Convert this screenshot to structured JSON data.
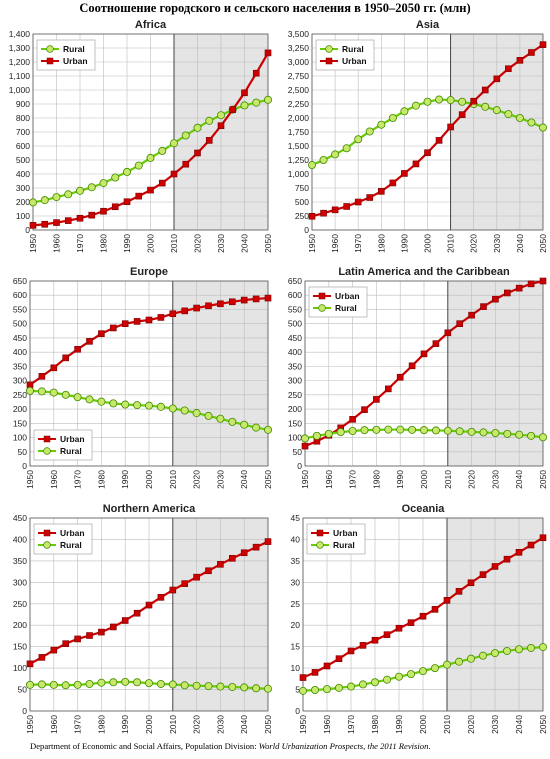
{
  "title": "Соотношение городского и сельского населения в 1950–2050 гг. (млн)",
  "source": {
    "prefix": "Department of Economic and Social Affairs, Population Division: ",
    "italic": "World Urbanization Prospects, the 2011 Revision",
    "suffix": "."
  },
  "colors": {
    "urban": "#cc0000",
    "rural": "#66cc00",
    "projection_shade": "#e4e4e4",
    "grid": "#bdbdbd"
  },
  "chart_data": [
    {
      "type": "line",
      "title": "Africa",
      "x": [
        1950,
        1955,
        1960,
        1965,
        1970,
        1975,
        1980,
        1985,
        1990,
        1995,
        2000,
        2005,
        2010,
        2015,
        2020,
        2025,
        2030,
        2035,
        2040,
        2045,
        2050
      ],
      "xticks": [
        1950,
        1960,
        1970,
        1980,
        1990,
        2000,
        2010,
        2020,
        2030,
        2040,
        2050
      ],
      "ylim": [
        0,
        1400
      ],
      "ystep": 100,
      "projection_from": 2010,
      "legend": "top-left",
      "series": [
        {
          "name": "Rural",
          "key": "rural",
          "values": [
            197,
            213,
            235,
            255,
            280,
            305,
            335,
            375,
            415,
            460,
            515,
            565,
            620,
            675,
            730,
            780,
            820,
            860,
            890,
            910,
            930
          ]
        },
        {
          "name": "Urban",
          "key": "urban",
          "values": [
            33,
            41,
            53,
            67,
            84,
            106,
            134,
            166,
            202,
            242,
            285,
            335,
            400,
            470,
            550,
            640,
            745,
            860,
            980,
            1120,
            1265
          ]
        }
      ]
    },
    {
      "type": "line",
      "title": "Asia",
      "x": [
        1950,
        1955,
        1960,
        1965,
        1970,
        1975,
        1980,
        1985,
        1990,
        1995,
        2000,
        2005,
        2010,
        2015,
        2020,
        2025,
        2030,
        2035,
        2040,
        2045,
        2050
      ],
      "xticks": [
        1950,
        1960,
        1970,
        1980,
        1990,
        2000,
        2010,
        2020,
        2030,
        2040,
        2050
      ],
      "ylim": [
        0,
        3500
      ],
      "ystep": 250,
      "projection_from": 2010,
      "legend": "top-left",
      "series": [
        {
          "name": "Rural",
          "key": "rural",
          "values": [
            1160,
            1250,
            1350,
            1460,
            1620,
            1760,
            1880,
            2000,
            2120,
            2220,
            2290,
            2330,
            2320,
            2290,
            2250,
            2200,
            2140,
            2070,
            2000,
            1920,
            1830
          ]
        },
        {
          "name": "Urban",
          "key": "urban",
          "values": [
            245,
            300,
            360,
            420,
            500,
            580,
            690,
            840,
            1010,
            1180,
            1380,
            1600,
            1840,
            2060,
            2300,
            2500,
            2700,
            2880,
            3030,
            3170,
            3310
          ]
        }
      ]
    },
    {
      "type": "line",
      "title": "Europe",
      "x": [
        1950,
        1955,
        1960,
        1965,
        1970,
        1975,
        1980,
        1985,
        1990,
        1995,
        2000,
        2005,
        2010,
        2015,
        2020,
        2025,
        2030,
        2035,
        2040,
        2045,
        2050
      ],
      "xticks": [
        1950,
        1960,
        1970,
        1980,
        1990,
        2000,
        2010,
        2020,
        2030,
        2040,
        2050
      ],
      "ylim": [
        0,
        650
      ],
      "ystep": 50,
      "projection_from": 2010,
      "legend": "bottom-left",
      "series": [
        {
          "name": "Urban",
          "key": "urban",
          "values": [
            285,
            315,
            345,
            380,
            410,
            438,
            465,
            485,
            500,
            508,
            513,
            522,
            535,
            545,
            555,
            563,
            570,
            577,
            583,
            587,
            590
          ]
        },
        {
          "name": "Rural",
          "key": "rural",
          "values": [
            264,
            262,
            258,
            250,
            242,
            234,
            226,
            220,
            216,
            214,
            212,
            208,
            202,
            195,
            186,
            176,
            166,
            155,
            145,
            135,
            127
          ]
        }
      ]
    },
    {
      "type": "line",
      "title": "Latin America and the Caribbean",
      "x": [
        1950,
        1955,
        1960,
        1965,
        1970,
        1975,
        1980,
        1985,
        1990,
        1995,
        2000,
        2005,
        2010,
        2015,
        2020,
        2025,
        2030,
        2035,
        2040,
        2045,
        2050
      ],
      "xticks": [
        1950,
        1960,
        1970,
        1980,
        1990,
        2000,
        2010,
        2020,
        2030,
        2040,
        2050
      ],
      "ylim": [
        0,
        650
      ],
      "ystep": 50,
      "projection_from": 2010,
      "legend": "top-left",
      "series": [
        {
          "name": "Urban",
          "key": "urban",
          "values": [
            70,
            87,
            108,
            134,
            164,
            198,
            234,
            271,
            312,
            352,
            394,
            430,
            468,
            500,
            530,
            560,
            586,
            608,
            625,
            640,
            650
          ]
        },
        {
          "name": "Rural",
          "key": "rural",
          "values": [
            97,
            106,
            113,
            119,
            123,
            126,
            127,
            128,
            128,
            127,
            126,
            125,
            124,
            122,
            120,
            118,
            116,
            113,
            110,
            106,
            101
          ]
        }
      ]
    },
    {
      "type": "line",
      "title": "Northern America",
      "x": [
        1950,
        1955,
        1960,
        1965,
        1970,
        1975,
        1980,
        1985,
        1990,
        1995,
        2000,
        2005,
        2010,
        2015,
        2020,
        2025,
        2030,
        2035,
        2040,
        2045,
        2050
      ],
      "xticks": [
        1950,
        1960,
        1970,
        1980,
        1990,
        2000,
        2010,
        2020,
        2030,
        2040,
        2050
      ],
      "ylim": [
        0,
        450
      ],
      "ystep": 50,
      "projection_from": 2010,
      "legend": "top-left",
      "series": [
        {
          "name": "Urban",
          "key": "urban",
          "values": [
            110,
            125,
            142,
            157,
            168,
            176,
            184,
            196,
            211,
            228,
            247,
            265,
            282,
            297,
            312,
            327,
            342,
            356,
            369,
            382,
            395
          ]
        },
        {
          "name": "Rural",
          "key": "rural",
          "values": [
            61,
            62,
            61,
            60,
            61,
            63,
            66,
            67,
            68,
            67,
            65,
            63,
            62,
            60,
            59,
            58,
            57,
            56,
            55,
            53,
            52
          ]
        }
      ]
    },
    {
      "type": "line",
      "title": "Oceania",
      "x": [
        1950,
        1955,
        1960,
        1965,
        1970,
        1975,
        1980,
        1985,
        1990,
        1995,
        2000,
        2005,
        2010,
        2015,
        2020,
        2025,
        2030,
        2035,
        2040,
        2045,
        2050
      ],
      "xticks": [
        1950,
        1960,
        1970,
        1980,
        1990,
        2000,
        2010,
        2020,
        2030,
        2040,
        2050
      ],
      "ylim": [
        0,
        45
      ],
      "ystep": 5,
      "projection_from": 2010,
      "legend": "top-left",
      "series": [
        {
          "name": "Urban",
          "key": "urban",
          "values": [
            7.8,
            9.0,
            10.5,
            12.2,
            14.0,
            15.3,
            16.5,
            17.8,
            19.3,
            20.6,
            22.1,
            23.7,
            25.8,
            27.9,
            29.9,
            31.8,
            33.7,
            35.4,
            37.0,
            38.7,
            40.4
          ]
        },
        {
          "name": "Rural",
          "key": "rural",
          "values": [
            4.7,
            4.9,
            5.1,
            5.4,
            5.7,
            6.2,
            6.7,
            7.3,
            8.0,
            8.6,
            9.3,
            10.0,
            10.8,
            11.5,
            12.2,
            12.9,
            13.5,
            14.0,
            14.4,
            14.7,
            14.9
          ]
        }
      ]
    }
  ]
}
